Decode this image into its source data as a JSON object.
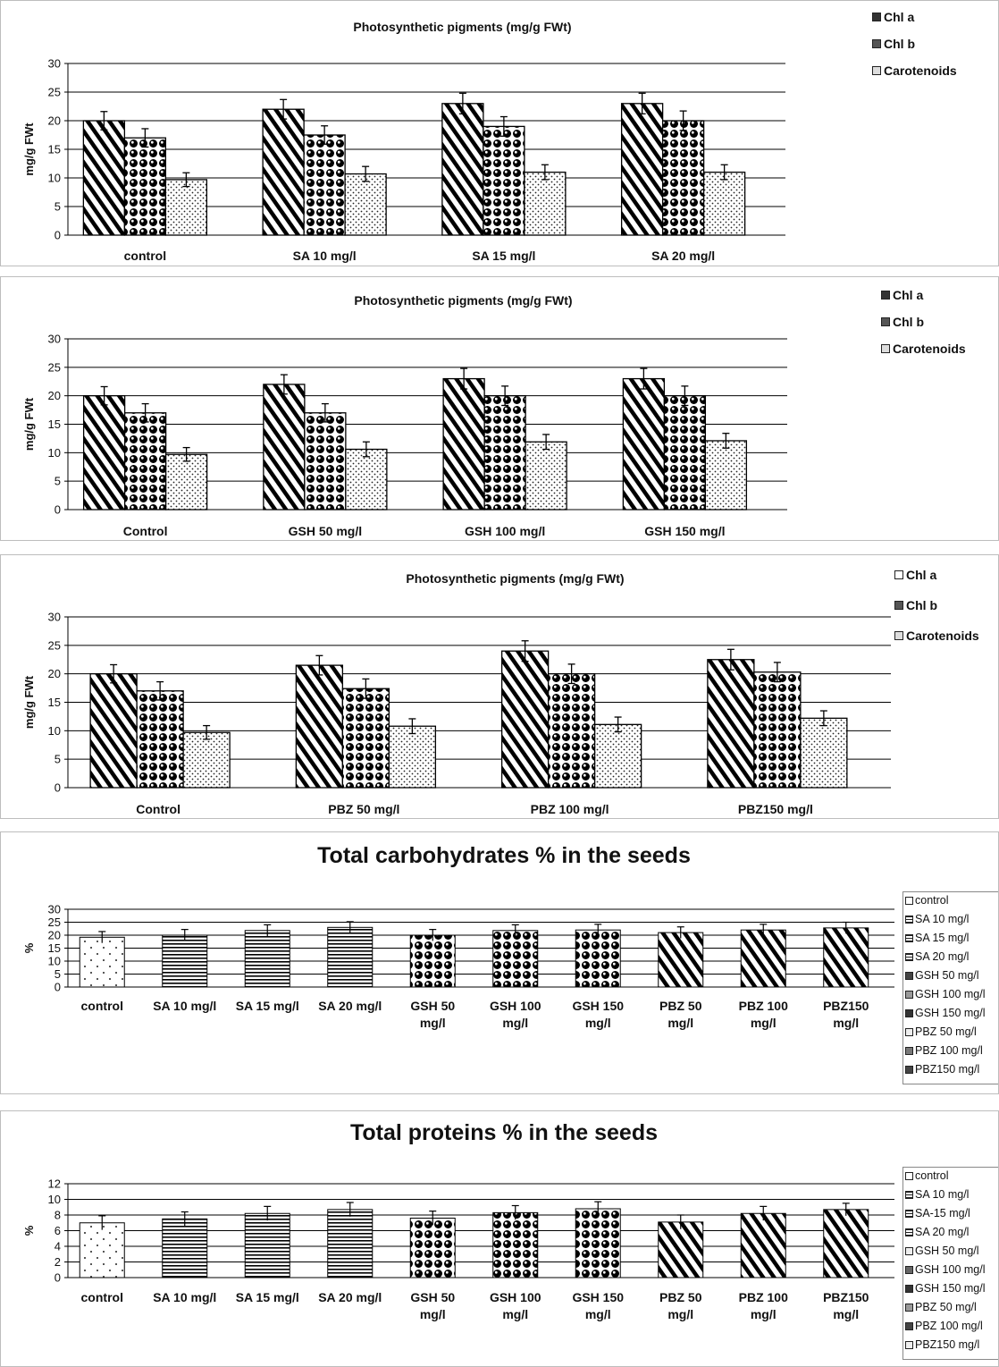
{
  "chart_data": [
    {
      "type": "bar",
      "title": "Photosynthetic pigments (mg/g FWt)",
      "ylabel": "mg/g FWt",
      "ylim": [
        0,
        30
      ],
      "yticks": [
        0,
        5,
        10,
        15,
        20,
        25,
        30
      ],
      "grid": true,
      "legend_position": "top-right",
      "categories": [
        "control",
        "SA 10 mg/l",
        "SA 15 mg/l",
        "SA 20 mg/l"
      ],
      "series": [
        {
          "name": "Chl a",
          "pattern": "diagonal",
          "values": [
            20.0,
            22.0,
            23.0,
            23.0
          ],
          "errors": [
            1.6,
            1.7,
            1.8,
            1.8
          ]
        },
        {
          "name": "Chl b",
          "pattern": "balls",
          "values": [
            17.0,
            17.5,
            19.0,
            20.0
          ],
          "errors": [
            1.6,
            1.6,
            1.7,
            1.7
          ]
        },
        {
          "name": "Carotenoids",
          "pattern": "dots",
          "values": [
            9.7,
            10.7,
            11.0,
            11.0
          ],
          "errors": [
            1.2,
            1.3,
            1.3,
            1.3
          ]
        }
      ]
    },
    {
      "type": "bar",
      "title": "Photosynthetic pigments (mg/g FWt)",
      "ylabel": "mg/g FWt",
      "ylim": [
        0,
        30
      ],
      "yticks": [
        0,
        5,
        10,
        15,
        20,
        25,
        30
      ],
      "grid": true,
      "legend_position": "top-right",
      "categories": [
        "Control",
        "GSH 50 mg/l",
        "GSH 100 mg/l",
        "GSH 150 mg/l"
      ],
      "series": [
        {
          "name": "Chl a",
          "pattern": "diagonal",
          "values": [
            20.0,
            22.0,
            23.0,
            23.0
          ],
          "errors": [
            1.6,
            1.7,
            1.8,
            1.8
          ]
        },
        {
          "name": "Chl b",
          "pattern": "balls",
          "values": [
            17.0,
            17.0,
            20.0,
            20.0
          ],
          "errors": [
            1.6,
            1.6,
            1.7,
            1.7
          ]
        },
        {
          "name": "Carotenoids",
          "pattern": "dots",
          "values": [
            9.7,
            10.6,
            11.9,
            12.1
          ],
          "errors": [
            1.2,
            1.3,
            1.3,
            1.3
          ]
        }
      ]
    },
    {
      "type": "bar",
      "title": "Photosynthetic pigments (mg/g FWt)",
      "ylabel": "mg/g FWt",
      "ylim": [
        0,
        30
      ],
      "yticks": [
        0,
        5,
        10,
        15,
        20,
        25,
        30
      ],
      "grid": true,
      "legend_position": "top-right",
      "categories": [
        "Control",
        "PBZ 50 mg/l",
        "PBZ 100 mg/l",
        "PBZ150 mg/l"
      ],
      "series": [
        {
          "name": "Chl a",
          "pattern": "diagonal",
          "values": [
            20.0,
            21.5,
            24.0,
            22.5
          ],
          "errors": [
            1.6,
            1.7,
            1.8,
            1.8
          ]
        },
        {
          "name": "Chl b",
          "pattern": "balls",
          "values": [
            17.0,
            17.4,
            20.0,
            20.3
          ],
          "errors": [
            1.6,
            1.7,
            1.7,
            1.7
          ]
        },
        {
          "name": "Carotenoids",
          "pattern": "dots",
          "values": [
            9.7,
            10.8,
            11.1,
            12.2
          ],
          "errors": [
            1.2,
            1.3,
            1.3,
            1.3
          ]
        }
      ]
    },
    {
      "type": "bar",
      "title": "Total carbohydrates % in the seeds",
      "ylabel": "%",
      "ylim": [
        0,
        30
      ],
      "yticks": [
        0,
        5,
        10,
        15,
        20,
        25,
        30
      ],
      "grid": true,
      "legend_position": "right",
      "categories": [
        "control",
        "SA 10 mg/l",
        "SA 15 mg/l",
        "SA 20 mg/l",
        "GSH 50 mg/l",
        "GSH 100 mg/l",
        "GSH 150 mg/l",
        "PBZ 50 mg/l",
        "PBZ 100 mg/l",
        "PBZ150 mg/l"
      ],
      "legend": [
        "control",
        "SA 10 mg/l",
        "SA 15 mg/l",
        "SA 20 mg/l",
        "GSH 50 mg/l",
        "GSH 100 mg/l",
        "GSH 150 mg/l",
        "PBZ 50 mg/l",
        "PBZ 100 mg/l",
        "PBZ150 mg/l"
      ],
      "patterns": [
        "sparse-dots",
        "horizontal",
        "horizontal",
        "horizontal",
        "balls",
        "balls",
        "balls",
        "diagonal",
        "diagonal",
        "diagonal"
      ],
      "values": [
        19.2,
        20.0,
        21.8,
        23.0,
        20.0,
        21.8,
        22.0,
        21.0,
        22.0,
        22.8
      ],
      "errors": [
        2.2,
        2.2,
        2.2,
        2.2,
        2.2,
        2.2,
        2.2,
        2.2,
        2.2,
        2.2
      ]
    },
    {
      "type": "bar",
      "title": "Total proteins % in the seeds",
      "ylabel": "%",
      "ylim": [
        0,
        12
      ],
      "yticks": [
        0,
        2,
        4,
        6,
        8,
        10,
        12
      ],
      "grid": true,
      "legend_position": "right",
      "categories": [
        "control",
        "SA 10 mg/l",
        "SA 15 mg/l",
        "SA 20 mg/l",
        "GSH 50 mg/l",
        "GSH 100 mg/l",
        "GSH 150 mg/l",
        "PBZ 50 mg/l",
        "PBZ 100 mg/l",
        "PBZ150 mg/l"
      ],
      "legend": [
        "control",
        "SA 10 mg/l",
        "SA-15 mg/l",
        "SA 20 mg/l",
        "GSH 50 mg/l",
        "GSH 100 mg/l",
        "GSH 150 mg/l",
        "PBZ 50 mg/l",
        "PBZ 100 mg/l",
        "PBZ150 mg/l"
      ],
      "patterns": [
        "sparse-dots",
        "horizontal",
        "horizontal",
        "horizontal",
        "balls",
        "balls",
        "balls",
        "diagonal",
        "diagonal",
        "diagonal"
      ],
      "values": [
        7.0,
        7.5,
        8.2,
        8.7,
        7.6,
        8.3,
        8.8,
        7.1,
        8.2,
        8.7
      ],
      "errors": [
        0.9,
        0.9,
        0.9,
        0.9,
        0.9,
        0.9,
        0.9,
        0.9,
        0.9,
        0.8
      ]
    }
  ]
}
